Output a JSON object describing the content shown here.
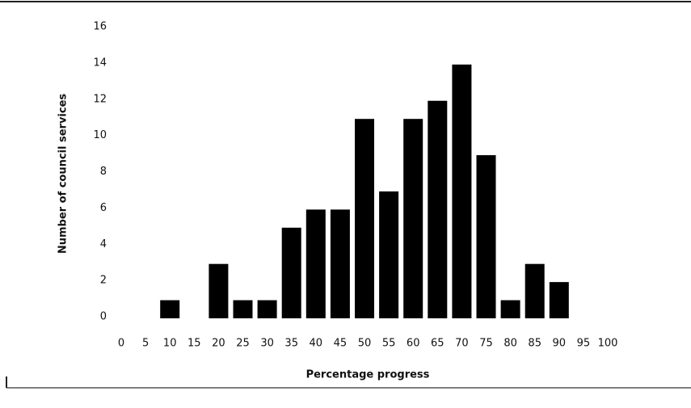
{
  "chart_data": {
    "type": "bar",
    "x_label": "Percentage progress",
    "y_label": "Number of council services",
    "categories": [
      "0",
      "5",
      "10",
      "15",
      "20",
      "25",
      "30",
      "35",
      "40",
      "45",
      "50",
      "55",
      "60",
      "65",
      "70",
      "75",
      "80",
      "85",
      "90",
      "95",
      "100"
    ],
    "values": [
      0,
      0,
      1,
      0,
      3,
      1,
      1,
      5,
      6,
      6,
      11,
      7,
      11,
      12,
      14,
      9,
      1,
      3,
      2,
      0,
      0
    ],
    "color": "#000000",
    "ylim": [
      0,
      16
    ],
    "yticks": [
      0,
      2,
      4,
      6,
      8,
      10,
      12,
      14,
      16
    ],
    "grid": false
  }
}
